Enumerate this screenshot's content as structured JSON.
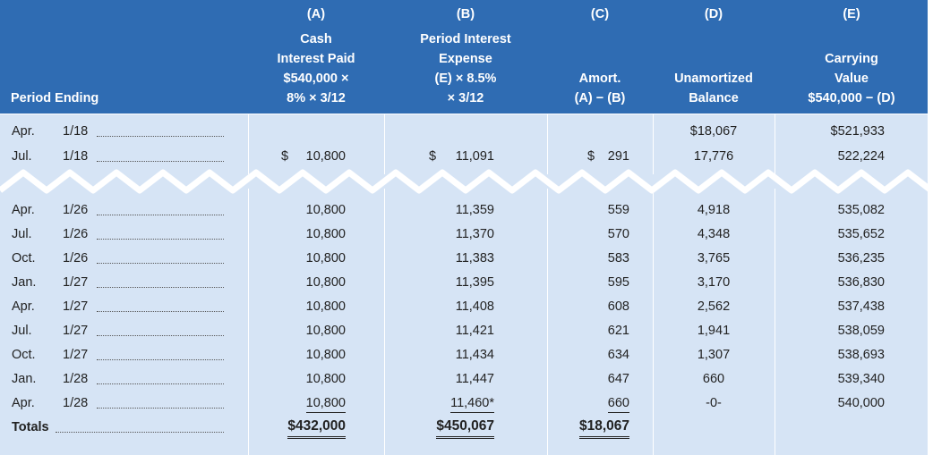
{
  "header": {
    "period": "Period Ending",
    "col_a": {
      "letter": "(A)",
      "lines": [
        "Cash",
        "Interest Paid",
        "$540,000 ×",
        "8% × 3/12"
      ]
    },
    "col_b": {
      "letter": "(B)",
      "lines": [
        "Period Interest",
        "Expense",
        "(E) × 8.5%",
        "× 3/12"
      ]
    },
    "col_c": {
      "letter": "(C)",
      "lines": [
        "Amort.",
        "(A) − (B)"
      ]
    },
    "col_d": {
      "letter": "(D)",
      "lines": [
        "Unamortized",
        "Balance"
      ]
    },
    "col_e": {
      "letter": "(E)",
      "lines": [
        "Carrying",
        "Value",
        "$540,000 − (D)"
      ]
    }
  },
  "top_rows": [
    {
      "month": "Apr.",
      "year": "1/18",
      "a": "",
      "b": "",
      "c": "",
      "d": "$18,067",
      "e": "$521,933"
    },
    {
      "month": "Jul.",
      "year": "1/18",
      "a": "10,800",
      "b": "11,091",
      "c": "291",
      "d": "17,776",
      "e": "522,224"
    }
  ],
  "currency_symbol": "$",
  "rows": [
    {
      "month": "Apr.",
      "year": "1/26",
      "a": "10,800",
      "b": "11,359",
      "c": "559",
      "d": "4,918",
      "e": "535,082"
    },
    {
      "month": "Jul.",
      "year": "1/26",
      "a": "10,800",
      "b": "11,370",
      "c": "570",
      "d": "4,348",
      "e": "535,652"
    },
    {
      "month": "Oct.",
      "year": "1/26",
      "a": "10,800",
      "b": "11,383",
      "c": "583",
      "d": "3,765",
      "e": "536,235"
    },
    {
      "month": "Jan.",
      "year": "1/27",
      "a": "10,800",
      "b": "11,395",
      "c": "595",
      "d": "3,170",
      "e": "536,830"
    },
    {
      "month": "Apr.",
      "year": "1/27",
      "a": "10,800",
      "b": "11,408",
      "c": "608",
      "d": "2,562",
      "e": "537,438"
    },
    {
      "month": "Jul.",
      "year": "1/27",
      "a": "10,800",
      "b": "11,421",
      "c": "621",
      "d": "1,941",
      "e": "538,059"
    },
    {
      "month": "Oct.",
      "year": "1/27",
      "a": "10,800",
      "b": "11,434",
      "c": "634",
      "d": "1,307",
      "e": "538,693"
    },
    {
      "month": "Jan.",
      "year": "1/28",
      "a": "10,800",
      "b": "11,447",
      "c": "647",
      "d": "660",
      "e": "539,340"
    },
    {
      "month": "Apr.",
      "year": "1/28",
      "a": "10,800",
      "b": "11,460*",
      "c": "660",
      "d": "-0-",
      "e": "540,000"
    }
  ],
  "totals": {
    "label": "Totals",
    "a": "$432,000",
    "b": "$450,067",
    "c": "$18,067"
  }
}
